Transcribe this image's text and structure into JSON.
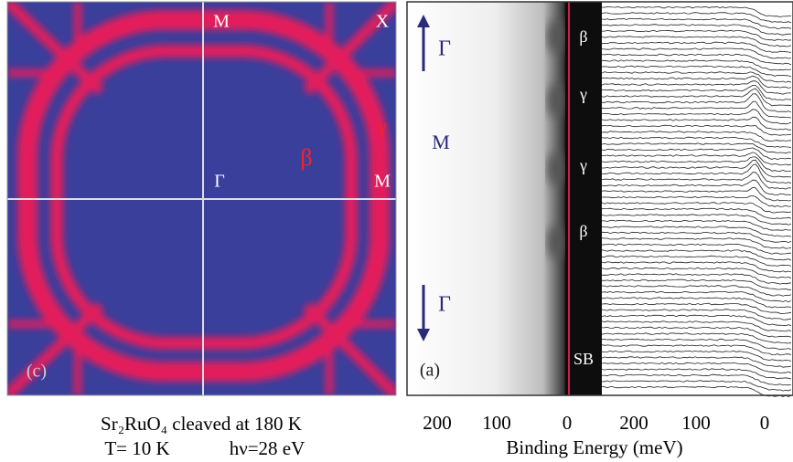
{
  "fermi_map": {
    "labels": {
      "m_top": "M",
      "x": "X",
      "gamma": "Γ",
      "m_right": "M",
      "beta": "β",
      "gamma_band": "γ",
      "panel": "(c)"
    }
  },
  "caption": {
    "line1": "Sr₂RuO₄ cleaved at 180 K",
    "temperature": "T= 10 K",
    "photon_energy": "hν=28 eV"
  },
  "spectra": {
    "gamma_top": "Γ",
    "m": "M",
    "gamma_bottom": "Γ",
    "panel": "(a)",
    "strip_labels": [
      "β",
      "γ",
      "γ",
      "β",
      "SB"
    ],
    "x_ticks_image": [
      "200",
      "100",
      "0"
    ],
    "x_ticks_edc": [
      "200",
      "100",
      "0"
    ],
    "x_label": "Binding Energy (meV)"
  }
}
